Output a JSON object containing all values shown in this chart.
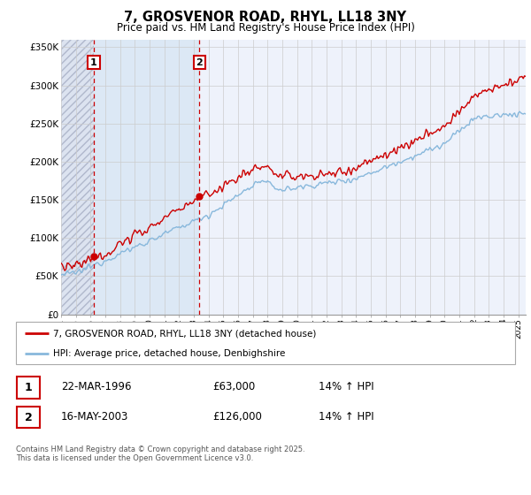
{
  "title": "7, GROSVENOR ROAD, RHYL, LL18 3NY",
  "subtitle": "Price paid vs. HM Land Registry's House Price Index (HPI)",
  "ylim": [
    0,
    360000
  ],
  "yticks": [
    0,
    50000,
    100000,
    150000,
    200000,
    250000,
    300000,
    350000
  ],
  "ytick_labels": [
    "£0",
    "£50K",
    "£100K",
    "£150K",
    "£200K",
    "£250K",
    "£300K",
    "£350K"
  ],
  "xstart": 1994.0,
  "xend": 2025.5,
  "hpi_color": "#88b8dc",
  "price_color": "#cc0000",
  "vline_color": "#cc0000",
  "transaction1_x": 1996.22,
  "transaction2_x": 2003.37,
  "legend_line1": "7, GROSVENOR ROAD, RHYL, LL18 3NY (detached house)",
  "legend_line2": "HPI: Average price, detached house, Denbighshire",
  "table_row1": [
    "1",
    "22-MAR-1996",
    "£63,000",
    "14% ↑ HPI"
  ],
  "table_row2": [
    "2",
    "16-MAY-2003",
    "£126,000",
    "14% ↑ HPI"
  ],
  "footnote": "Contains HM Land Registry data © Crown copyright and database right 2025.\nThis data is licensed under the Open Government Licence v3.0.",
  "bg_color": "#eef2fb",
  "hatch_bg_color": "#dce3f0",
  "blue_shade_color": "#dce8f5",
  "grid_color": "#cccccc"
}
